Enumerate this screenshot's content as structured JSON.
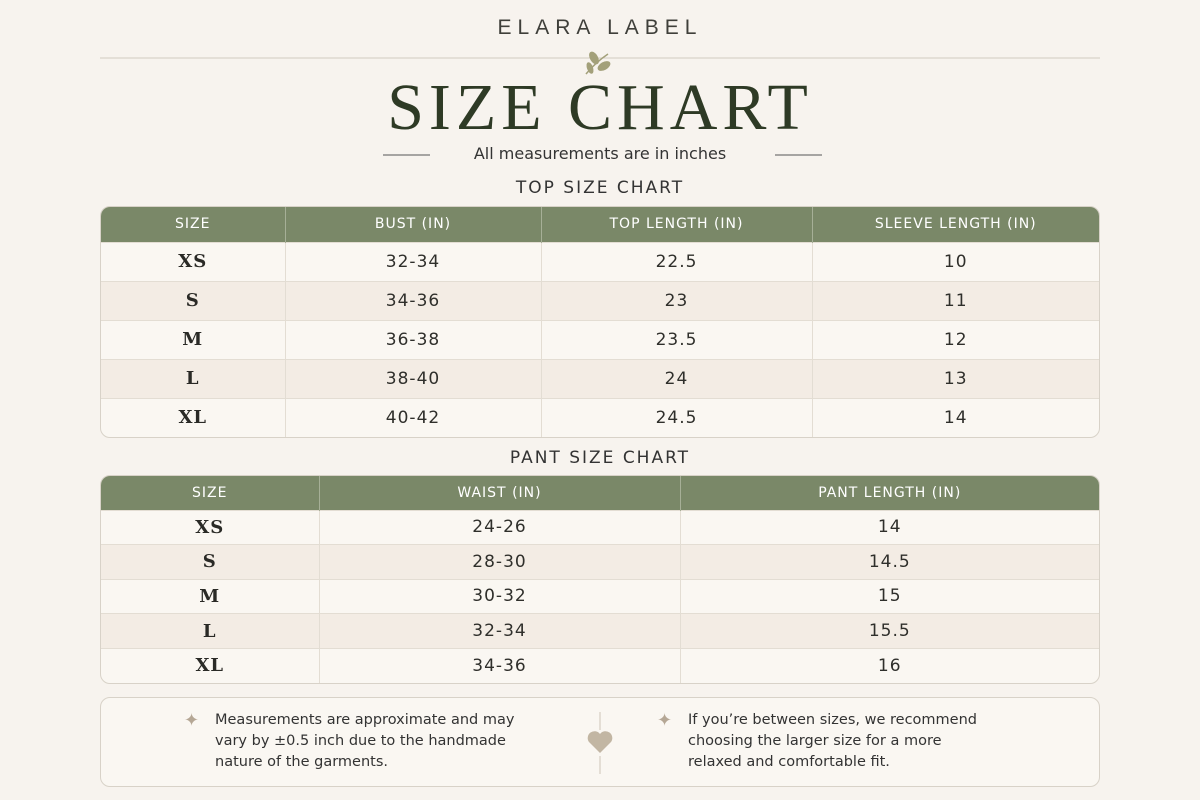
{
  "header": {
    "brand": "ELARA LABEL",
    "title": "SIZE CHART",
    "subtitle": "All measurements are in inches"
  },
  "top_table": {
    "title": "TOP SIZE CHART",
    "columns": [
      "SIZE",
      "BUST (IN)",
      "TOP LENGTH (IN)",
      "SLEEVE LENGTH (IN)"
    ],
    "rows": [
      [
        "XS",
        "32-34",
        "22.5",
        "10"
      ],
      [
        "S",
        "34-36",
        "23",
        "11"
      ],
      [
        "M",
        "36-38",
        "23.5",
        "12"
      ],
      [
        "L",
        "38-40",
        "24",
        "13"
      ],
      [
        "XL",
        "40-42",
        "24.5",
        "14"
      ]
    ]
  },
  "pant_table": {
    "title": "PANT SIZE CHART",
    "columns": [
      "SIZE",
      "WAIST (IN)",
      "PANT LENGTH (IN)"
    ],
    "rows": [
      [
        "XS",
        "24-26",
        "14"
      ],
      [
        "S",
        "28-30",
        "14.5"
      ],
      [
        "M",
        "30-32",
        "15"
      ],
      [
        "L",
        "32-34",
        "15.5"
      ],
      [
        "XL",
        "34-36",
        "16"
      ]
    ]
  },
  "notes": [
    "Measurements are approximate and may vary by ±0.5 inch due to the handmade nature of the garments.",
    "If you’re between sizes, we recommend choosing the larger size for a more relaxed and comfortable fit."
  ]
}
